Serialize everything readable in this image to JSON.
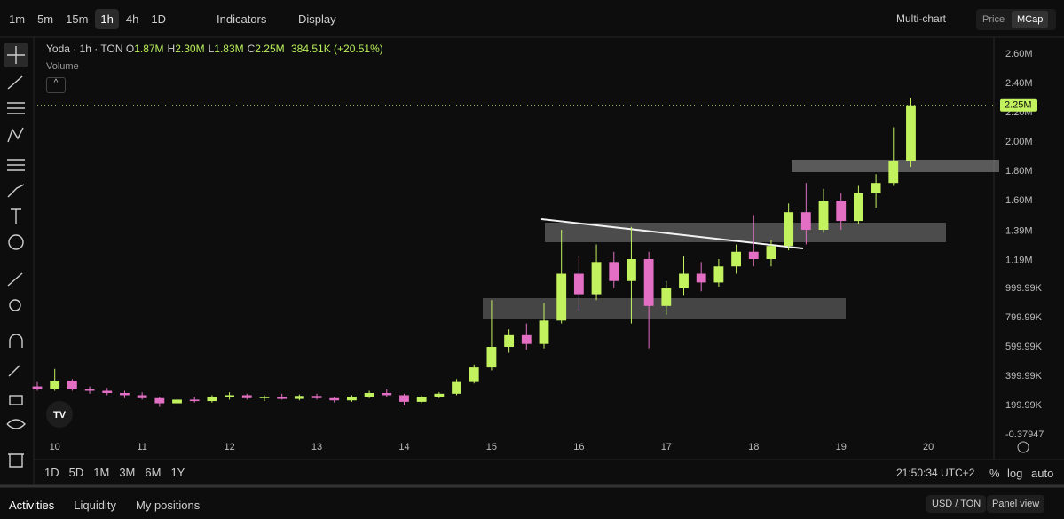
{
  "toolbar": {
    "timeframes": [
      "1m",
      "5m",
      "15m",
      "1h",
      "4h",
      "1D"
    ],
    "active_timeframe": 3,
    "indicators": "Indicators",
    "display": "Display",
    "multichart": "Multi-chart",
    "price": "Price",
    "mcap": "MCap"
  },
  "legend": {
    "symbol": "Yoda · 1h · TON",
    "ohlc": [
      {
        "key": "O",
        "label": "1.87M"
      },
      {
        "key": "H",
        "label": "2.30M"
      },
      {
        "key": "L",
        "label": "1.83M"
      },
      {
        "key": "C",
        "label": "2.25M"
      }
    ],
    "change": "384.51K (+20.51%)",
    "volume": "Volume"
  },
  "chart_data": {
    "type": "candlestick",
    "up_color": "#c3f25f",
    "down_color": "#e26fc3",
    "x": [
      9.8,
      10,
      10.2,
      10.4,
      10.6,
      10.8,
      11,
      11.2,
      11.4,
      11.6,
      11.8,
      12,
      12.2,
      12.4,
      12.6,
      12.8,
      13,
      13.2,
      13.4,
      13.6,
      13.8,
      14,
      14.2,
      14.4,
      14.6,
      14.8,
      15,
      15.2,
      15.4,
      15.6,
      15.8,
      16,
      16.2,
      16.4,
      16.6,
      16.8,
      17,
      17.2,
      17.4,
      17.6,
      17.8,
      18,
      18.2,
      18.4,
      18.6,
      18.8,
      19,
      19.2,
      19.4,
      19.6,
      19.8
    ],
    "open": [
      330000,
      310000,
      370000,
      310000,
      300000,
      285000,
      270000,
      250000,
      215000,
      240000,
      230000,
      255000,
      270000,
      250000,
      260000,
      245000,
      265000,
      250000,
      235000,
      260000,
      285000,
      270000,
      225000,
      260000,
      280000,
      360000,
      460000,
      600000,
      680000,
      620000,
      780000,
      1100000,
      960000,
      1180000,
      1050000,
      1200000,
      880000,
      1000000,
      1100000,
      1040000,
      1150000,
      1250000,
      1200000,
      1290000,
      1520000,
      1400000,
      1600000,
      1460000,
      1650000,
      1720000,
      1870000
    ],
    "high": [
      360000,
      450000,
      380000,
      330000,
      320000,
      300000,
      290000,
      260000,
      250000,
      260000,
      270000,
      290000,
      280000,
      270000,
      280000,
      275000,
      280000,
      260000,
      270000,
      300000,
      310000,
      280000,
      270000,
      290000,
      380000,
      480000,
      920000,
      720000,
      760000,
      900000,
      1400000,
      1220000,
      1300000,
      1250000,
      1420000,
      1250000,
      1050000,
      1220000,
      1180000,
      1200000,
      1300000,
      1500000,
      1330000,
      1580000,
      1720000,
      1680000,
      1650000,
      1700000,
      1780000,
      2100000,
      2300000
    ],
    "low": [
      300000,
      300000,
      300000,
      280000,
      270000,
      250000,
      240000,
      190000,
      205000,
      220000,
      220000,
      240000,
      240000,
      230000,
      240000,
      235000,
      240000,
      220000,
      225000,
      250000,
      260000,
      200000,
      215000,
      250000,
      270000,
      350000,
      440000,
      560000,
      580000,
      590000,
      760000,
      850000,
      920000,
      1000000,
      760000,
      590000,
      820000,
      950000,
      980000,
      1010000,
      1100000,
      1150000,
      1150000,
      1260000,
      1300000,
      1380000,
      1400000,
      1440000,
      1550000,
      1700000,
      1830000
    ],
    "close": [
      310000,
      370000,
      310000,
      300000,
      285000,
      270000,
      250000,
      215000,
      240000,
      230000,
      255000,
      270000,
      250000,
      260000,
      245000,
      265000,
      250000,
      235000,
      260000,
      285000,
      270000,
      225000,
      260000,
      280000,
      360000,
      460000,
      600000,
      680000,
      620000,
      780000,
      1100000,
      960000,
      1180000,
      1050000,
      1200000,
      880000,
      1000000,
      1100000,
      1040000,
      1150000,
      1250000,
      1200000,
      1290000,
      1520000,
      1400000,
      1600000,
      1460000,
      1650000,
      1720000,
      1870000,
      2250000
    ],
    "xlim": [
      9.8,
      20.75
    ],
    "xticks": [
      10,
      11,
      12,
      13,
      14,
      15,
      16,
      17,
      18,
      19,
      20
    ],
    "ylim": [
      -12000,
      2715000
    ],
    "yticks": [
      {
        "value": 2600000,
        "label": "2.60M"
      },
      {
        "value": 2400000,
        "label": "2.40M"
      },
      {
        "value": 2200000,
        "label": "2.20M"
      },
      {
        "value": 2000000,
        "label": "2.00M"
      },
      {
        "value": 1800000,
        "label": "1.80M"
      },
      {
        "value": 1600000,
        "label": "1.60M"
      },
      {
        "value": 1390000,
        "label": "1.39M"
      },
      {
        "value": 1190000,
        "label": "1.19M"
      },
      {
        "value": 999990,
        "label": "999.99K"
      },
      {
        "value": 799990,
        "label": "799.99K"
      },
      {
        "value": 599990,
        "label": "599.99K"
      },
      {
        "value": 399990,
        "label": "399.99K"
      },
      {
        "value": 199990,
        "label": "199.99K"
      },
      {
        "value": -0.37947,
        "label": "-0.37947"
      }
    ],
    "grid": false,
    "price_line": {
      "value": 2250000,
      "label": "2.25M"
    }
  },
  "bottom": {
    "ranges": [
      "1D",
      "5D",
      "1M",
      "3M",
      "6M",
      "1Y"
    ],
    "time": "21:50:34 UTC+2",
    "percent": "%",
    "log": "log",
    "auto": "auto"
  },
  "tabs": [
    "Activities",
    "Liquidity",
    "My positions"
  ],
  "currency": "USD / TON",
  "panel": "Panel view"
}
